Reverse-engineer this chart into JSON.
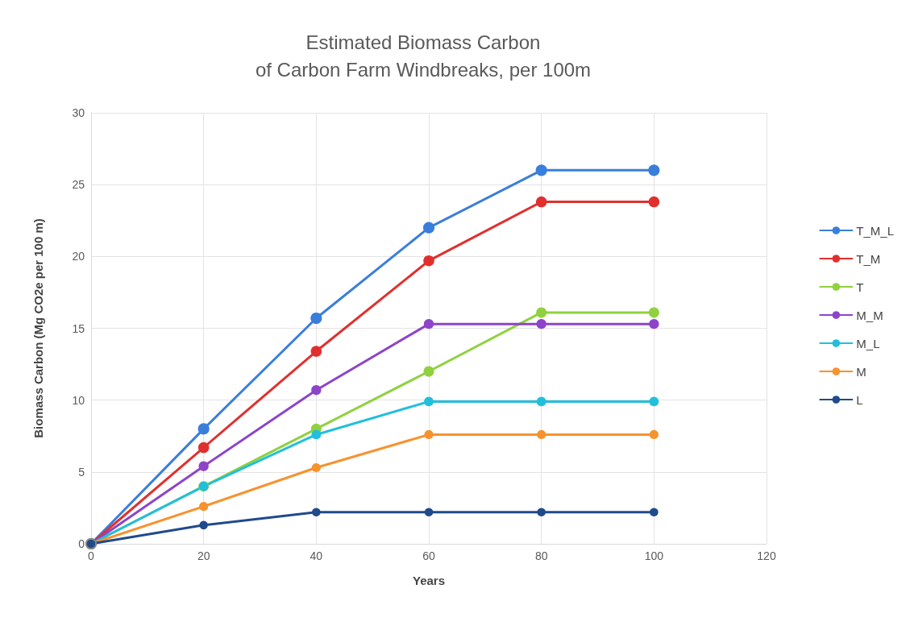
{
  "chart_data": {
    "type": "line",
    "title": "Estimated Biomass Carbon\nof Carbon Farm Windbreaks, per 100m",
    "xlabel": "Years",
    "ylabel": "Biomass Carbon (Mg CO2e per 100 m)",
    "x": [
      0,
      20,
      40,
      60,
      80,
      100
    ],
    "series": [
      {
        "name": "T_M_L",
        "color": "#3a7edb",
        "values": [
          0,
          8.0,
          15.7,
          22.0,
          26.0,
          26.0
        ]
      },
      {
        "name": "T_M",
        "color": "#e0302e",
        "values": [
          0,
          6.7,
          13.4,
          19.7,
          23.8,
          23.8
        ]
      },
      {
        "name": "T",
        "color": "#8fd13f",
        "values": [
          0,
          4.0,
          8.0,
          12.0,
          16.1,
          16.1
        ]
      },
      {
        "name": "M_M",
        "color": "#8e44c8",
        "values": [
          0,
          5.4,
          10.7,
          15.3,
          15.3,
          15.3
        ]
      },
      {
        "name": "M_L",
        "color": "#22bfdc",
        "values": [
          0,
          4.0,
          7.6,
          9.9,
          9.9,
          9.9
        ]
      },
      {
        "name": "M",
        "color": "#f7922e",
        "values": [
          0,
          2.6,
          5.3,
          7.6,
          7.6,
          7.6
        ]
      },
      {
        "name": "L",
        "color": "#1f4a8c",
        "values": [
          0,
          1.3,
          2.2,
          2.2,
          2.2,
          2.2
        ]
      }
    ],
    "xlim": [
      0,
      120
    ],
    "xticks": [
      0,
      20,
      40,
      60,
      80,
      100,
      120
    ],
    "ylim": [
      0,
      30
    ],
    "yticks": [
      0,
      5,
      10,
      15,
      20,
      25,
      30
    ],
    "grid": true,
    "legend": "right",
    "marker": "circle",
    "line_style": "solid"
  }
}
